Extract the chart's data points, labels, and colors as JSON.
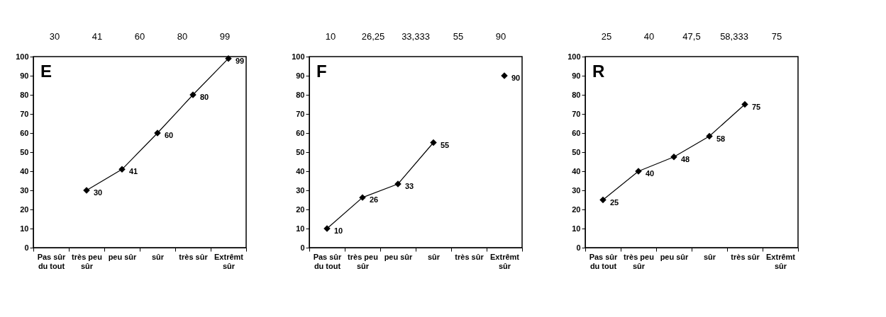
{
  "chart_data": [
    {
      "type": "line",
      "title": "E",
      "categories": [
        "Pas sûr du tout",
        "très peu sûr",
        "peu sûr",
        "sûr",
        "très sûr",
        "Extrêmt sûr"
      ],
      "series": [
        {
          "color": "#000000",
          "values": [
            null,
            30,
            41,
            60,
            80,
            99
          ]
        }
      ],
      "data_labels": true,
      "ylim": [
        0,
        100
      ],
      "yticks": [
        0,
        10,
        20,
        30,
        40,
        50,
        60,
        70,
        80,
        90,
        100
      ],
      "grid": false,
      "marker": "diamond",
      "line_style": "solid",
      "annotations": [
        "30",
        "41",
        "60",
        "80",
        "99"
      ]
    },
    {
      "type": "line",
      "title": "F",
      "categories": [
        "Pas sûr du tout",
        "très peu sûr",
        "peu sûr",
        "sûr",
        "très sûr",
        "Extrêmt sûr"
      ],
      "series": [
        {
          "color": "#000000",
          "values": [
            10,
            26.25,
            33.333,
            55,
            null,
            90
          ],
          "value_labels": [
            "10",
            "26",
            "33",
            "55",
            null,
            "90"
          ]
        }
      ],
      "ylim": [
        0,
        100
      ],
      "yticks": [
        0,
        10,
        20,
        30,
        40,
        50,
        60,
        70,
        80,
        90,
        100
      ],
      "grid": false,
      "marker": "diamond",
      "line_style": "solid",
      "annotations": [
        "10",
        "26,25",
        "33,333",
        "55",
        "90"
      ]
    },
    {
      "type": "line",
      "title": "R",
      "categories": [
        "Pas sûr du tout",
        "très peu sûr",
        "peu sûr",
        "sûr",
        "très sûr",
        "Extrêmt sûr"
      ],
      "series": [
        {
          "color": "#000000",
          "values": [
            25,
            40,
            47.5,
            58.333,
            75,
            null
          ],
          "value_labels": [
            "25",
            "40",
            "48",
            "58",
            "75",
            null
          ]
        }
      ],
      "ylim": [
        0,
        100
      ],
      "yticks": [
        0,
        10,
        20,
        30,
        40,
        50,
        60,
        70,
        80,
        90,
        100
      ],
      "grid": false,
      "marker": "diamond",
      "line_style": "solid",
      "annotations": [
        "25",
        "40",
        "47,5",
        "58,333",
        "75"
      ]
    }
  ]
}
